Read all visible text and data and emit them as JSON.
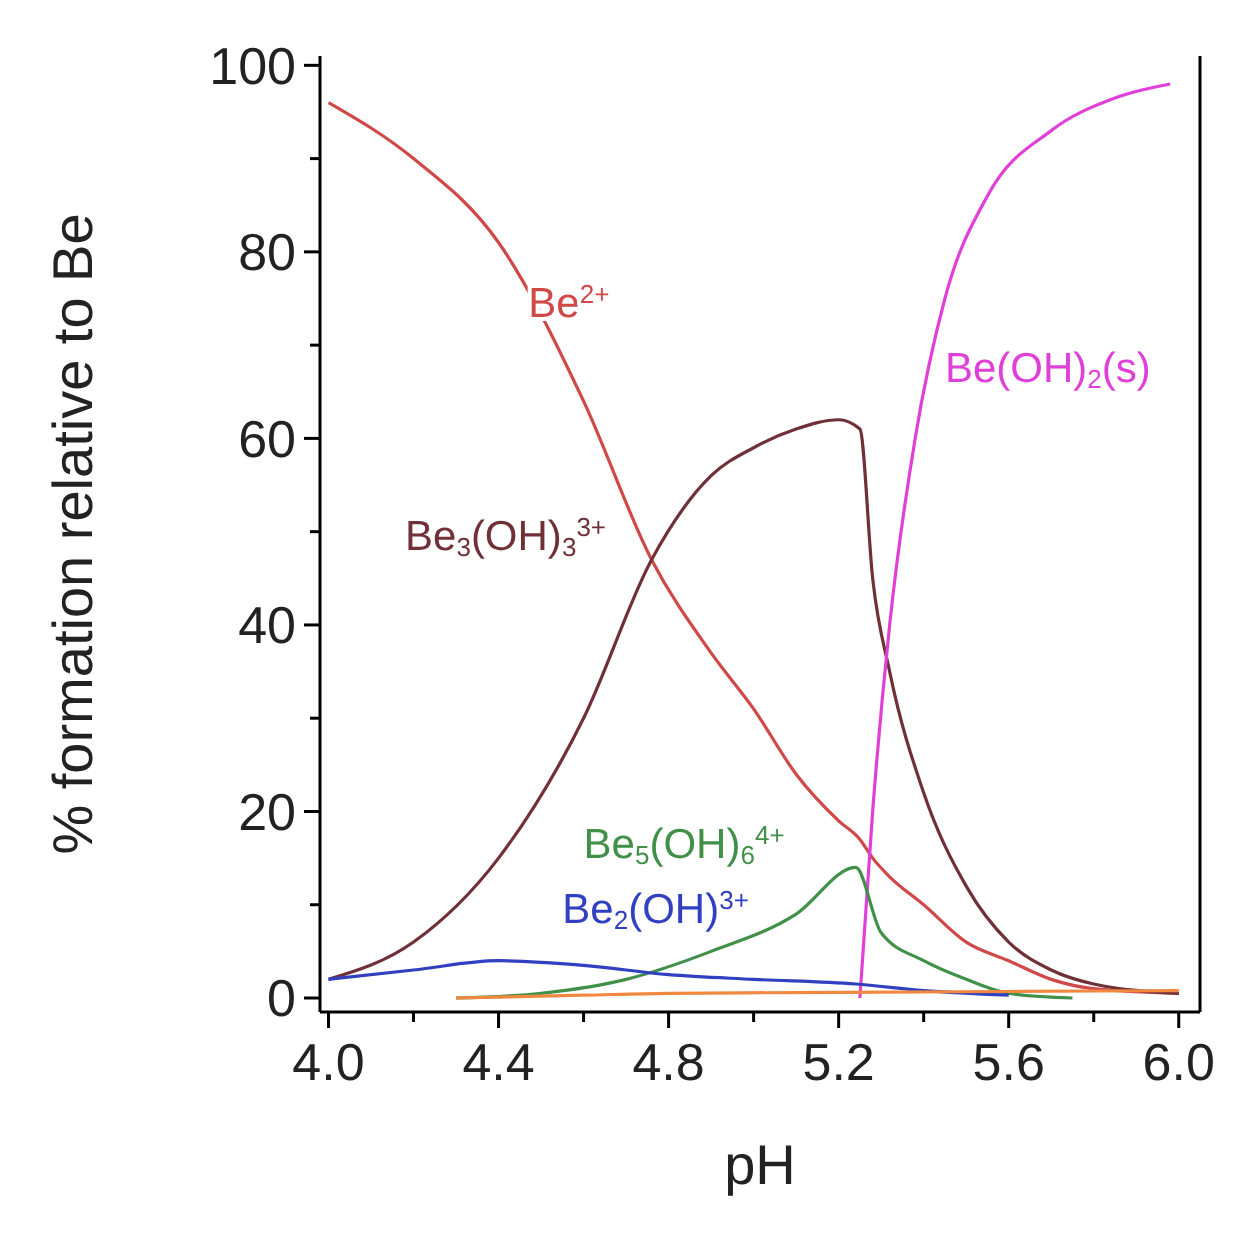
{
  "chart_data": {
    "type": "line",
    "xlabel": "pH",
    "ylabel": "% formation relative to Be",
    "x": [
      4.0,
      4.2,
      4.4,
      4.6,
      4.76,
      4.9,
      5.0,
      5.1,
      5.2,
      5.25,
      5.28,
      5.32,
      5.4,
      5.5,
      5.6,
      5.7,
      5.8,
      6.0
    ],
    "series": [
      {
        "name": "Be$^{2+}$",
        "color": "#d04848",
        "values": [
          96,
          90,
          81,
          64,
          47,
          37,
          31,
          24,
          19,
          17,
          15,
          13,
          10,
          6,
          4,
          2,
          1,
          0.5
        ]
      },
      {
        "name": "Be$_{3}$(OH)$_{3}$$^{3+}$",
        "color": "#703038",
        "values": [
          2,
          6,
          15,
          30,
          47,
          56,
          59,
          61,
          62,
          61,
          45,
          35,
          22,
          12,
          6,
          3,
          1.5,
          0.5
        ]
      },
      {
        "name": "Be(OH)$_{2}$(s)",
        "color": "#e040d8",
        "x": [
          5.25,
          5.28,
          5.32,
          5.38,
          5.45,
          5.55,
          5.7,
          5.85,
          5.98
        ],
        "values": [
          0,
          20,
          40,
          60,
          75,
          86,
          93,
          96.5,
          98
        ]
      },
      {
        "name": "Be$_{5}$(OH)$_{6}$$^{4+}$",
        "color": "#409048",
        "x": [
          4.3,
          4.5,
          4.7,
          4.9,
          5.1,
          5.24,
          5.3,
          5.4,
          5.5,
          5.6,
          5.75
        ],
        "values": [
          0,
          0.5,
          2,
          5,
          9,
          14,
          7,
          4,
          2,
          0.5,
          0
        ]
      },
      {
        "name": "Be$_{2}$(OH)$^{3+}$",
        "color": "#3040c0",
        "x": [
          4.0,
          4.2,
          4.4,
          4.6,
          4.8,
          5.0,
          5.24,
          5.4,
          5.6
        ],
        "values": [
          2,
          3,
          4,
          3.5,
          2.5,
          2,
          1.5,
          0.8,
          0.3
        ]
      },
      {
        "color": "#f08840",
        "x": [
          4.3,
          4.6,
          4.8,
          5.2,
          5.6,
          6.0
        ],
        "values": [
          0,
          0.3,
          0.5,
          0.6,
          0.7,
          0.8
        ]
      }
    ],
    "xlim": [
      3.98,
      6.05
    ],
    "ylim": [
      -1.5,
      101
    ],
    "xticks": [
      {
        "value": 4,
        "label": "4.0"
      },
      {
        "value": 4.2,
        "label": null
      },
      4.4,
      {
        "value": 4.6,
        "label": null
      },
      4.8,
      {
        "value": 5.0,
        "label": null
      },
      5.2,
      {
        "value": 5.4,
        "label": null
      },
      5.6,
      {
        "value": 5.8,
        "label": null
      },
      {
        "value": 6,
        "label": "6.0"
      }
    ],
    "yticks": [
      0,
      {
        "value": 10,
        "label": null
      },
      20,
      {
        "value": 30,
        "label": null
      },
      40,
      {
        "value": 50,
        "label": null
      },
      60,
      {
        "value": 70,
        "label": null
      },
      80,
      {
        "value": 90,
        "label": null
      },
      100
    ],
    "grid": false
  }
}
